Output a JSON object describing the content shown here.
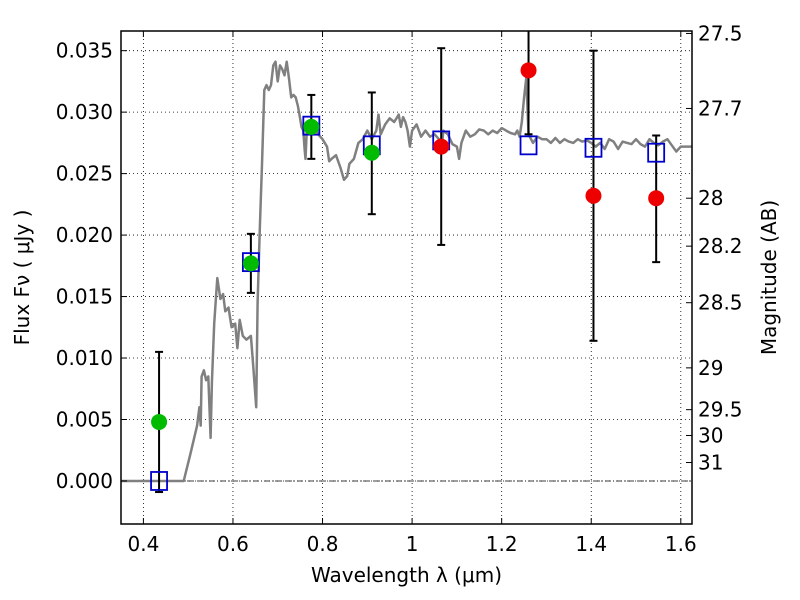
{
  "chart_data": {
    "type": "scatter",
    "xlabel": "Wavelength  λ (μm)",
    "ylabel": "Flux  Fν  ( μJy )",
    "y2label": "Magnitude (AB)",
    "xlim": [
      0.35,
      1.625
    ],
    "ylim": [
      -0.0035,
      0.0366
    ],
    "grid": true,
    "x_ticks": [
      "0.4",
      "0.6",
      "0.8",
      "1",
      "1.2",
      "1.4",
      "1.6"
    ],
    "x_tick_values": [
      0.4,
      0.6,
      0.8,
      1.0,
      1.2,
      1.4,
      1.6
    ],
    "y_ticks": [
      "0.000",
      "0.005",
      "0.010",
      "0.015",
      "0.020",
      "0.025",
      "0.030",
      "0.035"
    ],
    "y_tick_values": [
      0.0,
      0.005,
      0.01,
      0.015,
      0.02,
      0.025,
      0.03,
      0.035
    ],
    "mag_ticks": [
      {
        "label": "27.5",
        "flux": 0.0364
      },
      {
        "label": "27.7",
        "flux": 0.0303
      },
      {
        "label": "28",
        "flux": 0.023
      },
      {
        "label": "28.2",
        "flux": 0.0191
      },
      {
        "label": "28.5",
        "flux": 0.0145
      },
      {
        "label": "29",
        "flux": 0.0092
      },
      {
        "label": "29.5",
        "flux": 0.0058
      },
      {
        "label": "30",
        "flux": 0.0037
      },
      {
        "label": "31",
        "flux": 0.0015
      }
    ],
    "zero_line": 0.0,
    "series": [
      {
        "kind": "line",
        "color": "#808080",
        "points": [
          [
            0.35,
            0.0
          ],
          [
            0.49,
            0.0
          ],
          [
            0.505,
            0.0022
          ],
          [
            0.52,
            0.0045
          ],
          [
            0.525,
            0.006
          ],
          [
            0.528,
            0.0045
          ],
          [
            0.53,
            0.0085
          ],
          [
            0.535,
            0.009
          ],
          [
            0.54,
            0.0082
          ],
          [
            0.545,
            0.0085
          ],
          [
            0.55,
            0.0035
          ],
          [
            0.553,
            0.008
          ],
          [
            0.558,
            0.0128
          ],
          [
            0.565,
            0.0165
          ],
          [
            0.572,
            0.0148
          ],
          [
            0.578,
            0.0152
          ],
          [
            0.583,
            0.0138
          ],
          [
            0.59,
            0.0141
          ],
          [
            0.597,
            0.0125
          ],
          [
            0.605,
            0.0128
          ],
          [
            0.61,
            0.0108
          ],
          [
            0.615,
            0.0131
          ],
          [
            0.622,
            0.0118
          ],
          [
            0.63,
            0.0115
          ],
          [
            0.64,
            0.0118
          ],
          [
            0.645,
            0.0095
          ],
          [
            0.652,
            0.006
          ],
          [
            0.655,
            0.0145
          ],
          [
            0.66,
            0.0205
          ],
          [
            0.665,
            0.026
          ],
          [
            0.67,
            0.0318
          ],
          [
            0.675,
            0.0322
          ],
          [
            0.68,
            0.0318
          ],
          [
            0.685,
            0.0322
          ],
          [
            0.69,
            0.0338
          ],
          [
            0.695,
            0.0341
          ],
          [
            0.7,
            0.0325
          ],
          [
            0.705,
            0.0338
          ],
          [
            0.71,
            0.0335
          ],
          [
            0.715,
            0.033
          ],
          [
            0.72,
            0.0341
          ],
          [
            0.725,
            0.0328
          ],
          [
            0.73,
            0.0312
          ],
          [
            0.735,
            0.0314
          ],
          [
            0.74,
            0.0312
          ],
          [
            0.745,
            0.0305
          ],
          [
            0.75,
            0.0295
          ],
          [
            0.753,
            0.0288
          ],
          [
            0.757,
            0.0285
          ],
          [
            0.76,
            0.027
          ],
          [
            0.762,
            0.0262
          ],
          [
            0.765,
            0.0288
          ],
          [
            0.77,
            0.0292
          ],
          [
            0.78,
            0.029
          ],
          [
            0.79,
            0.0282
          ],
          [
            0.8,
            0.0278
          ],
          [
            0.81,
            0.0272
          ],
          [
            0.815,
            0.026
          ],
          [
            0.82,
            0.0262
          ],
          [
            0.83,
            0.0265
          ],
          [
            0.84,
            0.0255
          ],
          [
            0.848,
            0.0245
          ],
          [
            0.855,
            0.0248
          ],
          [
            0.86,
            0.0258
          ],
          [
            0.87,
            0.0262
          ],
          [
            0.88,
            0.0275
          ],
          [
            0.89,
            0.0278
          ],
          [
            0.9,
            0.0285
          ],
          [
            0.91,
            0.0278
          ],
          [
            0.92,
            0.0285
          ],
          [
            0.925,
            0.0298
          ],
          [
            0.93,
            0.0282
          ],
          [
            0.94,
            0.029
          ],
          [
            0.95,
            0.0295
          ],
          [
            0.96,
            0.0292
          ],
          [
            0.97,
            0.0298
          ],
          [
            0.975,
            0.0288
          ],
          [
            0.98,
            0.0296
          ],
          [
            0.985,
            0.0292
          ],
          [
            0.99,
            0.0285
          ],
          [
            0.995,
            0.0272
          ],
          [
            1.0,
            0.0285
          ],
          [
            1.01,
            0.029
          ],
          [
            1.02,
            0.028
          ],
          [
            1.03,
            0.0285
          ],
          [
            1.04,
            0.028
          ],
          [
            1.05,
            0.0282
          ],
          [
            1.06,
            0.0278
          ],
          [
            1.065,
            0.0268
          ],
          [
            1.07,
            0.0285
          ],
          [
            1.08,
            0.0282
          ],
          [
            1.09,
            0.0274
          ],
          [
            1.1,
            0.0272
          ],
          [
            1.105,
            0.0262
          ],
          [
            1.11,
            0.0275
          ],
          [
            1.12,
            0.0285
          ],
          [
            1.13,
            0.028
          ],
          [
            1.14,
            0.0282
          ],
          [
            1.15,
            0.0286
          ],
          [
            1.16,
            0.0285
          ],
          [
            1.17,
            0.0282
          ],
          [
            1.18,
            0.0285
          ],
          [
            1.19,
            0.0283
          ],
          [
            1.2,
            0.0287
          ],
          [
            1.21,
            0.0285
          ],
          [
            1.22,
            0.0283
          ],
          [
            1.23,
            0.0282
          ],
          [
            1.235,
            0.0285
          ],
          [
            1.24,
            0.028
          ],
          [
            1.245,
            0.0292
          ],
          [
            1.25,
            0.0312
          ],
          [
            1.255,
            0.0328
          ],
          [
            1.26,
            0.0282
          ],
          [
            1.27,
            0.0275
          ],
          [
            1.28,
            0.028
          ],
          [
            1.29,
            0.0278
          ],
          [
            1.3,
            0.0278
          ],
          [
            1.31,
            0.0275
          ],
          [
            1.32,
            0.0279
          ],
          [
            1.33,
            0.0275
          ],
          [
            1.34,
            0.0278
          ],
          [
            1.35,
            0.0276
          ],
          [
            1.36,
            0.0275
          ],
          [
            1.37,
            0.0278
          ],
          [
            1.38,
            0.0276
          ],
          [
            1.39,
            0.0277
          ],
          [
            1.4,
            0.0275
          ],
          [
            1.41,
            0.0272
          ],
          [
            1.42,
            0.0275
          ],
          [
            1.43,
            0.027
          ],
          [
            1.44,
            0.0278
          ],
          [
            1.45,
            0.0276
          ],
          [
            1.46,
            0.027
          ],
          [
            1.47,
            0.0276
          ],
          [
            1.48,
            0.0275
          ],
          [
            1.49,
            0.0274
          ],
          [
            1.5,
            0.0278
          ],
          [
            1.51,
            0.0274
          ],
          [
            1.52,
            0.0272
          ],
          [
            1.53,
            0.0278
          ],
          [
            1.54,
            0.0275
          ],
          [
            1.55,
            0.0273
          ],
          [
            1.56,
            0.0276
          ],
          [
            1.57,
            0.0278
          ],
          [
            1.58,
            0.0273
          ],
          [
            1.59,
            0.0268
          ],
          [
            1.6,
            0.0272
          ],
          [
            1.625,
            0.0272
          ]
        ]
      },
      {
        "kind": "open-squares",
        "color": "#0000cc",
        "x": [
          0.435,
          0.64,
          0.775,
          0.91,
          1.065,
          1.26,
          1.405,
          1.545
        ],
        "y": [
          0.0,
          0.0178,
          0.0289,
          0.0273,
          0.0277,
          0.0273,
          0.0271,
          0.0267
        ]
      },
      {
        "kind": "points-with-errors",
        "color": "#00bb00",
        "x": [
          0.435,
          0.64,
          0.775,
          0.91
        ],
        "y": [
          0.0048,
          0.0177,
          0.0288,
          0.0267
        ],
        "yerr_low": [
          -0.0009,
          0.0153,
          0.0262,
          0.0217
        ],
        "yerr_high": [
          0.0105,
          0.0201,
          0.0314,
          0.0316
        ]
      },
      {
        "kind": "points-with-errors",
        "color": "#ee0000",
        "x": [
          1.065,
          1.26,
          1.405,
          1.545
        ],
        "y": [
          0.0272,
          0.0334,
          0.0232,
          0.023
        ],
        "yerr_low": [
          0.0192,
          0.0282,
          0.0114,
          0.0178
        ],
        "yerr_high": [
          0.0352,
          0.0366,
          0.035,
          0.0281
        ]
      }
    ]
  }
}
